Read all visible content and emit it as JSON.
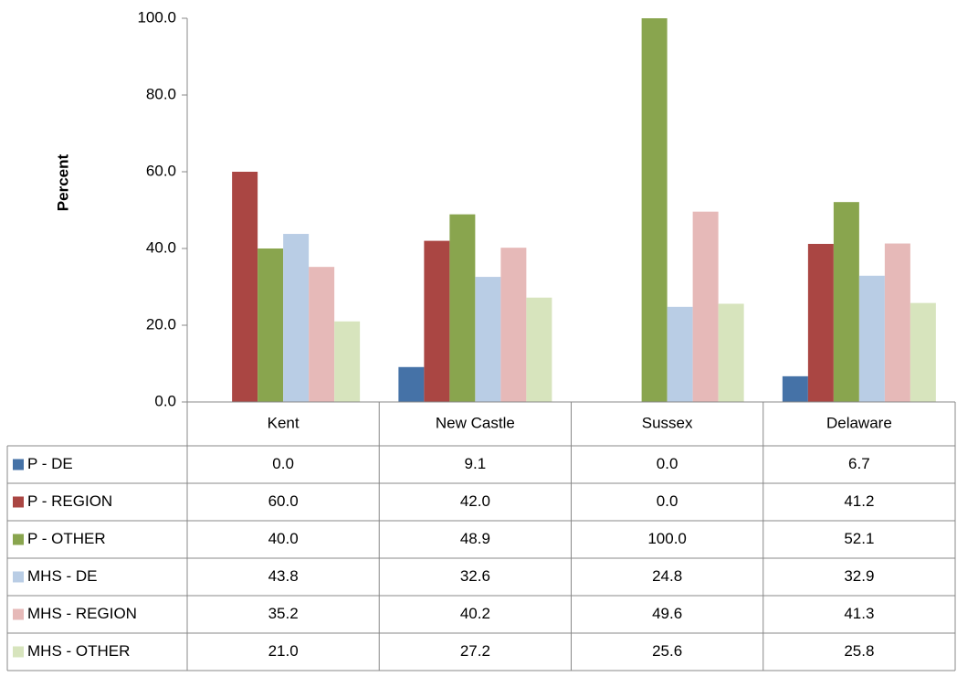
{
  "chart_data": {
    "type": "bar",
    "y_label": "Percent",
    "categories": [
      "Kent",
      "New Castle",
      "Sussex",
      "Delaware"
    ],
    "ylim": [
      0,
      100
    ],
    "yticks": [
      {
        "value": 0,
        "label": "0.0"
      },
      {
        "value": 20,
        "label": "20.0"
      },
      {
        "value": 40,
        "label": "40.0"
      },
      {
        "value": 60,
        "label": "60.0"
      },
      {
        "value": 80,
        "label": "80.0"
      },
      {
        "value": 100,
        "label": "100.0"
      }
    ],
    "series": [
      {
        "name": "P - DE",
        "color": "#4572a7",
        "values": [
          0,
          9.1,
          0,
          6.7
        ],
        "value_labels": [
          "0.0",
          "9.1",
          "0.0",
          "6.7"
        ]
      },
      {
        "name": "P - REGION",
        "color": "#aa4643",
        "values": [
          60,
          42,
          0,
          41.2
        ],
        "value_labels": [
          "60.0",
          "42.0",
          "0.0",
          "41.2"
        ]
      },
      {
        "name": "P - OTHER",
        "color": "#89a54e",
        "values": [
          40,
          48.9,
          100,
          52.1
        ],
        "value_labels": [
          "40.0",
          "48.9",
          "100.0",
          "52.1"
        ]
      },
      {
        "name": "MHS - DE",
        "color": "#b9cde5",
        "values": [
          43.8,
          32.6,
          24.8,
          32.9
        ],
        "value_labels": [
          "43.8",
          "32.6",
          "24.8",
          "32.9"
        ]
      },
      {
        "name": "MHS - REGION",
        "color": "#e6b9b8",
        "values": [
          35.2,
          40.2,
          49.6,
          41.3
        ],
        "value_labels": [
          "35.2",
          "40.2",
          "49.6",
          "41.3"
        ]
      },
      {
        "name": "MHS - OTHER",
        "color": "#d7e4bd",
        "values": [
          21,
          27.2,
          25.6,
          25.8
        ],
        "value_labels": [
          "21.0",
          "27.2",
          "25.6",
          "25.8"
        ]
      }
    ]
  }
}
